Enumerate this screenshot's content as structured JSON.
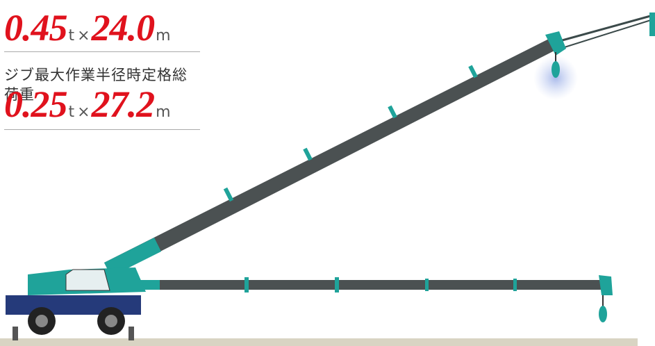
{
  "specs": [
    {
      "load": "0.45",
      "load_unit": "t",
      "times": "×",
      "radius": "24.0",
      "radius_unit": "m"
    },
    {
      "label": "ジブ最大作業半径時定格総荷重",
      "load": "0.25",
      "load_unit": "t",
      "times": "×",
      "radius": "27.2",
      "radius_unit": "m"
    }
  ]
}
